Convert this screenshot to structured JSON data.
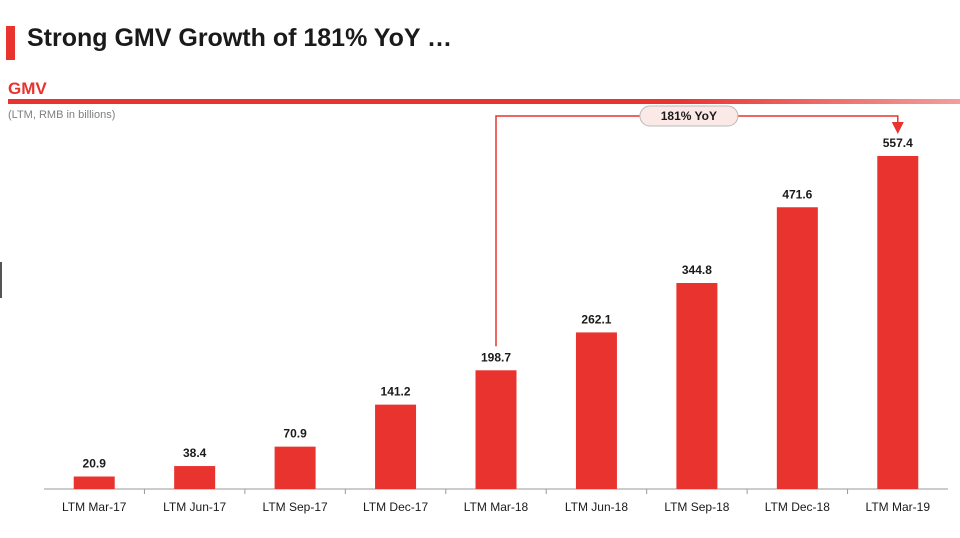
{
  "header": {
    "title": "Strong GMV Growth of 181% YoY …",
    "section_label": "GMV",
    "unit_label": "(LTM, RMB in billions)"
  },
  "colors": {
    "accent": "#e8332f",
    "bar": "#e8332f"
  },
  "chart_data": {
    "type": "bar",
    "title": "",
    "xlabel": "",
    "ylabel": "",
    "ylim": [
      0,
      600
    ],
    "grid": false,
    "categories": [
      "LTM Mar-17",
      "LTM Jun-17",
      "LTM Sep-17",
      "LTM Dec-17",
      "LTM Mar-18",
      "LTM Jun-18",
      "LTM Sep-18",
      "LTM Dec-18",
      "LTM Mar-19"
    ],
    "values": [
      20.9,
      38.4,
      70.9,
      141.2,
      198.7,
      262.1,
      344.8,
      471.6,
      557.4
    ],
    "value_labels": [
      "20.9",
      "38.4",
      "70.9",
      "141.2",
      "198.7",
      "262.1",
      "344.8",
      "471.6",
      "557.4"
    ],
    "annotation": {
      "text": "181% YoY",
      "from_category": "LTM Mar-18",
      "to_category": "LTM Mar-19"
    }
  }
}
